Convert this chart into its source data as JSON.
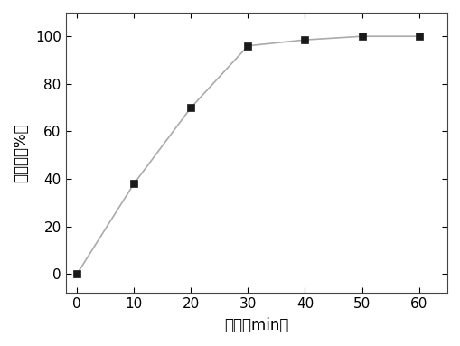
{
  "x": [
    0,
    10,
    20,
    30,
    40,
    50,
    60
  ],
  "y": [
    0,
    38,
    70,
    96,
    98.5,
    100,
    100
  ],
  "xlabel": "时间（min）",
  "ylabel": "降解率（%）",
  "xlim": [
    -2,
    65
  ],
  "ylim": [
    -8,
    110
  ],
  "xticks": [
    0,
    10,
    20,
    30,
    40,
    50,
    60
  ],
  "yticks": [
    0,
    20,
    40,
    60,
    80,
    100
  ],
  "line_color": "#aaaaaa",
  "marker_color": "#1a1a1a",
  "marker": "s",
  "marker_size": 6,
  "linewidth": 1.2,
  "background_color": "#ffffff",
  "font_size_label": 12,
  "font_size_tick": 11
}
